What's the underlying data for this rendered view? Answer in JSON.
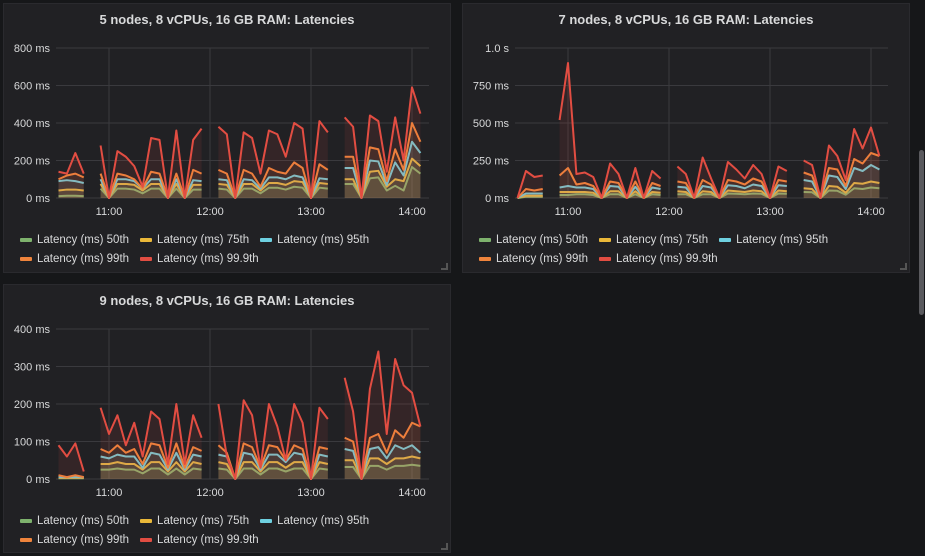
{
  "colors": {
    "p50": "#7eb26d",
    "p75": "#eab839",
    "p95": "#6ed0e0",
    "p99": "#ef843c",
    "p999": "#e24d42",
    "grid": "#3a3a3e",
    "text": "#d8d9da",
    "panel_bg": "#212124"
  },
  "chart_data": [
    {
      "type": "line",
      "title": "5 nodes, 8 vCPUs, 16 GB RAM: Latencies",
      "ylim": [
        0,
        800
      ],
      "yticks": [
        0,
        200,
        400,
        600,
        800
      ],
      "ytick_labels": [
        "0 ms",
        "200 ms",
        "400 ms",
        "600 ms",
        "800 ms"
      ],
      "xtick_labels": [
        "11:00",
        "12:00",
        "13:00",
        "14:00"
      ],
      "grid": true,
      "legend_placement": "bottom",
      "x": [
        "10:30",
        "10:35",
        "10:40",
        "10:45",
        "10:50",
        "10:55",
        "11:00",
        "11:05",
        "11:10",
        "11:15",
        "11:20",
        "11:25",
        "11:30",
        "11:35",
        "11:40",
        "11:45",
        "11:50",
        "11:55",
        "12:00",
        "12:05",
        "12:10",
        "12:15",
        "12:20",
        "12:25",
        "12:30",
        "12:35",
        "12:40",
        "12:45",
        "12:50",
        "12:55",
        "13:00",
        "13:05",
        "13:10",
        "13:15",
        "13:20",
        "13:25",
        "13:30",
        "13:35",
        "13:40",
        "13:45",
        "13:50",
        "13:55",
        "14:00",
        "14:05"
      ],
      "series": [
        {
          "name": "Latency (ms) 50th",
          "color_key": "p50",
          "values": [
            10,
            12,
            12,
            10,
            null,
            50,
            0,
            50,
            50,
            45,
            25,
            50,
            50,
            0,
            50,
            0,
            45,
            45,
            null,
            50,
            45,
            0,
            50,
            50,
            25,
            55,
            55,
            45,
            60,
            55,
            0,
            55,
            50,
            null,
            75,
            75,
            0,
            105,
            110,
            40,
            65,
            40,
            165,
            130
          ]
        },
        {
          "name": "Latency (ms) 75th",
          "color_key": "p75",
          "values": [
            40,
            45,
            45,
            40,
            null,
            75,
            0,
            75,
            75,
            70,
            40,
            75,
            75,
            0,
            75,
            0,
            70,
            70,
            null,
            75,
            70,
            0,
            75,
            75,
            40,
            80,
            80,
            70,
            90,
            85,
            0,
            80,
            75,
            null,
            100,
            100,
            0,
            140,
            145,
            60,
            100,
            90,
            210,
            170
          ]
        },
        {
          "name": "Latency (ms) 95th",
          "color_key": "p95",
          "values": [
            90,
            95,
            90,
            80,
            null,
            100,
            0,
            100,
            100,
            90,
            50,
            100,
            100,
            0,
            100,
            0,
            95,
            90,
            null,
            100,
            95,
            0,
            100,
            95,
            50,
            110,
            110,
            100,
            120,
            110,
            0,
            105,
            100,
            null,
            160,
            160,
            0,
            200,
            195,
            70,
            190,
            120,
            300,
            240
          ]
        },
        {
          "name": "Latency (ms) 99th",
          "color_key": "p99",
          "values": [
            100,
            120,
            130,
            110,
            null,
            130,
            0,
            130,
            120,
            100,
            50,
            140,
            130,
            0,
            130,
            0,
            150,
            130,
            null,
            150,
            130,
            0,
            150,
            130,
            60,
            160,
            140,
            130,
            190,
            160,
            0,
            180,
            150,
            null,
            220,
            220,
            0,
            270,
            260,
            90,
            260,
            150,
            400,
            300
          ]
        },
        {
          "name": "Latency (ms) 99.9th",
          "color_key": "p999",
          "values": [
            140,
            130,
            240,
            130,
            null,
            280,
            0,
            250,
            220,
            170,
            60,
            320,
            310,
            0,
            360,
            0,
            310,
            370,
            null,
            380,
            340,
            0,
            350,
            320,
            130,
            360,
            340,
            220,
            400,
            370,
            0,
            410,
            350,
            null,
            430,
            380,
            0,
            440,
            410,
            140,
            430,
            200,
            590,
            450
          ]
        }
      ]
    },
    {
      "type": "line",
      "title": "7 nodes, 8 vCPUs, 16 GB RAM: Latencies",
      "ylim": [
        0,
        1000
      ],
      "yticks": [
        0,
        250,
        500,
        750,
        1000
      ],
      "ytick_labels": [
        "0 ms",
        "250 ms",
        "500 ms",
        "750 ms",
        "1.0 s"
      ],
      "xtick_labels": [
        "11:00",
        "12:00",
        "13:00",
        "14:00"
      ],
      "grid": true,
      "legend_placement": "bottom",
      "x": [
        "10:30",
        "10:35",
        "10:40",
        "10:45",
        "10:50",
        "10:55",
        "11:00",
        "11:05",
        "11:10",
        "11:15",
        "11:20",
        "11:25",
        "11:30",
        "11:35",
        "11:40",
        "11:45",
        "11:50",
        "11:55",
        "12:00",
        "12:05",
        "12:10",
        "12:15",
        "12:20",
        "12:25",
        "12:30",
        "12:35",
        "12:40",
        "12:45",
        "12:50",
        "12:55",
        "13:00",
        "13:05",
        "13:10",
        "13:15",
        "13:20",
        "13:25",
        "13:30",
        "13:35",
        "13:40",
        "13:45",
        "13:50",
        "13:55",
        "14:00",
        "14:05"
      ],
      "series": [
        {
          "name": "Latency (ms) 50th",
          "color_key": "p50",
          "values": [
            0,
            8,
            8,
            8,
            null,
            20,
            20,
            25,
            25,
            20,
            0,
            25,
            25,
            0,
            25,
            0,
            25,
            20,
            null,
            25,
            25,
            0,
            25,
            25,
            0,
            30,
            28,
            25,
            30,
            28,
            0,
            30,
            28,
            null,
            40,
            38,
            0,
            50,
            48,
            22,
            65,
            60,
            70,
            65
          ]
        },
        {
          "name": "Latency (ms) 75th",
          "color_key": "p75",
          "values": [
            0,
            15,
            15,
            15,
            null,
            40,
            40,
            40,
            40,
            35,
            0,
            45,
            45,
            0,
            45,
            0,
            40,
            35,
            null,
            45,
            40,
            0,
            45,
            40,
            0,
            50,
            45,
            40,
            50,
            45,
            0,
            50,
            45,
            null,
            65,
            60,
            0,
            80,
            75,
            35,
            100,
            95,
            110,
            100
          ]
        },
        {
          "name": "Latency (ms) 95th",
          "color_key": "p95",
          "values": [
            0,
            30,
            30,
            30,
            null,
            70,
            80,
            70,
            70,
            60,
            0,
            80,
            75,
            0,
            75,
            0,
            70,
            60,
            null,
            75,
            70,
            0,
            80,
            70,
            0,
            85,
            80,
            65,
            90,
            80,
            0,
            85,
            80,
            null,
            120,
            110,
            0,
            150,
            140,
            60,
            200,
            180,
            220,
            190
          ]
        },
        {
          "name": "Latency (ms) 99th",
          "color_key": "p99",
          "values": [
            0,
            60,
            50,
            60,
            null,
            150,
            200,
            90,
            100,
            80,
            0,
            110,
            100,
            0,
            110,
            0,
            100,
            80,
            null,
            110,
            100,
            0,
            120,
            90,
            0,
            120,
            110,
            90,
            130,
            110,
            0,
            120,
            110,
            null,
            170,
            150,
            0,
            200,
            190,
            80,
            260,
            230,
            300,
            280
          ]
        },
        {
          "name": "Latency (ms) 99.9th",
          "color_key": "p999",
          "values": [
            0,
            180,
            140,
            150,
            null,
            520,
            900,
            160,
            170,
            140,
            0,
            230,
            160,
            0,
            200,
            0,
            180,
            130,
            null,
            210,
            160,
            0,
            270,
            130,
            0,
            240,
            190,
            130,
            220,
            160,
            0,
            210,
            180,
            null,
            250,
            220,
            0,
            350,
            280,
            120,
            460,
            330,
            470,
            280
          ]
        }
      ]
    },
    {
      "type": "line",
      "title": "9 nodes, 8 vCPUs, 16 GB RAM: Latencies",
      "ylim": [
        0,
        400
      ],
      "yticks": [
        0,
        100,
        200,
        300,
        400
      ],
      "ytick_labels": [
        "0 ms",
        "100 ms",
        "200 ms",
        "300 ms",
        "400 ms"
      ],
      "xtick_labels": [
        "11:00",
        "12:00",
        "13:00",
        "14:00"
      ],
      "grid": true,
      "legend_placement": "bottom",
      "x": [
        "10:30",
        "10:35",
        "10:40",
        "10:45",
        "10:50",
        "10:55",
        "11:00",
        "11:05",
        "11:10",
        "11:15",
        "11:20",
        "11:25",
        "11:30",
        "11:35",
        "11:40",
        "11:45",
        "11:50",
        "11:55",
        "12:00",
        "12:05",
        "12:10",
        "12:15",
        "12:20",
        "12:25",
        "12:30",
        "12:35",
        "12:40",
        "12:45",
        "12:50",
        "12:55",
        "13:00",
        "13:05",
        "13:10",
        "13:15",
        "13:20",
        "13:25",
        "13:30",
        "13:35",
        "13:40",
        "13:45",
        "13:50",
        "13:55",
        "14:00",
        "14:05"
      ],
      "series": [
        {
          "name": "Latency (ms) 50th",
          "color_key": "p50",
          "values": [
            2,
            2,
            2,
            2,
            null,
            25,
            25,
            28,
            25,
            25,
            15,
            28,
            28,
            12,
            28,
            12,
            28,
            25,
            null,
            28,
            25,
            0,
            28,
            28,
            12,
            28,
            28,
            20,
            28,
            28,
            0,
            28,
            25,
            null,
            32,
            32,
            0,
            35,
            35,
            25,
            35,
            35,
            38,
            35
          ]
        },
        {
          "name": "Latency (ms) 75th",
          "color_key": "p75",
          "values": [
            3,
            3,
            3,
            3,
            null,
            40,
            40,
            45,
            40,
            40,
            25,
            45,
            45,
            20,
            45,
            20,
            45,
            40,
            null,
            45,
            40,
            0,
            45,
            45,
            20,
            45,
            45,
            30,
            45,
            45,
            0,
            45,
            40,
            null,
            50,
            50,
            0,
            55,
            55,
            40,
            55,
            55,
            60,
            55
          ]
        },
        {
          "name": "Latency (ms) 95th",
          "color_key": "p95",
          "values": [
            5,
            5,
            5,
            5,
            null,
            60,
            55,
            65,
            60,
            60,
            30,
            70,
            65,
            25,
            70,
            25,
            65,
            60,
            null,
            65,
            60,
            0,
            70,
            65,
            25,
            65,
            65,
            45,
            70,
            65,
            0,
            65,
            60,
            null,
            80,
            75,
            0,
            80,
            85,
            55,
            90,
            80,
            90,
            70
          ]
        },
        {
          "name": "Latency (ms) 99th",
          "color_key": "p99",
          "values": [
            10,
            5,
            10,
            5,
            null,
            80,
            70,
            90,
            70,
            80,
            40,
            95,
            90,
            30,
            95,
            30,
            85,
            75,
            null,
            90,
            70,
            0,
            95,
            85,
            30,
            90,
            85,
            50,
            90,
            80,
            0,
            85,
            80,
            null,
            110,
            100,
            0,
            110,
            120,
            70,
            130,
            110,
            150,
            140
          ]
        },
        {
          "name": "Latency (ms) 99.9th",
          "color_key": "p999",
          "values": [
            90,
            60,
            95,
            20,
            null,
            190,
            120,
            170,
            90,
            150,
            60,
            180,
            160,
            40,
            200,
            40,
            170,
            110,
            null,
            200,
            60,
            0,
            210,
            170,
            30,
            200,
            140,
            50,
            200,
            150,
            0,
            190,
            160,
            null,
            270,
            180,
            0,
            240,
            340,
            120,
            320,
            250,
            230,
            140
          ]
        }
      ]
    }
  ]
}
